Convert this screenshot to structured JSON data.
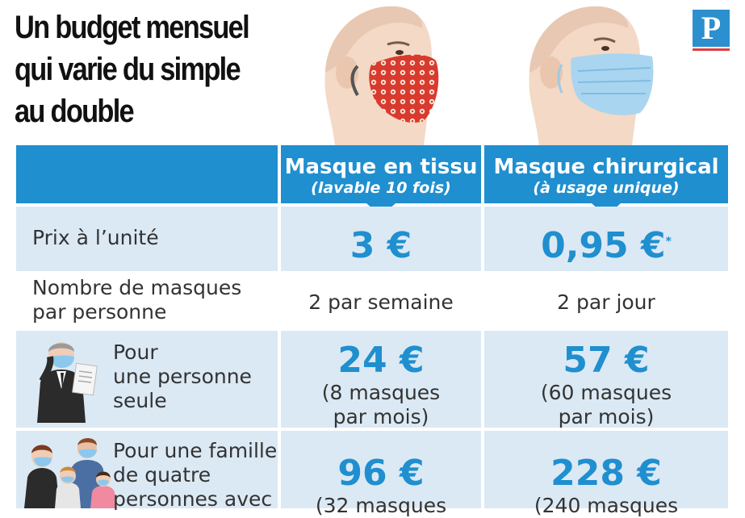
{
  "title_lines": [
    "Un budget mensuel",
    "qui varie du simple",
    "au double"
  ],
  "logo": {
    "letter": "P",
    "icon": "le-parisien-logo-icon"
  },
  "columns": [
    {
      "title": "Masque en tissu",
      "subtitle": "(lavable 10 fois)"
    },
    {
      "title": "Masque chirurgical",
      "subtitle": "(à usage unique)"
    }
  ],
  "rows": {
    "prix": {
      "label": "Prix à l’unité",
      "tissu": "3 €",
      "chirurgical": "0,95 €",
      "chirurgical_note": "*"
    },
    "nombre": {
      "label_lines": [
        "Nombre de masques",
        "par personne"
      ],
      "tissu": "2 par semaine",
      "chirurgical": "2 par jour"
    },
    "seule": {
      "label_lines": [
        "Pour",
        "une personne",
        "seule"
      ],
      "icon": "businessman-with-mask-icon",
      "tissu_price": "24 €",
      "tissu_detail_lines": [
        "(8 masques",
        "par mois)"
      ],
      "chirurgical_price": "57 €",
      "chirurgical_detail_lines": [
        "(60 masques",
        "par mois)"
      ]
    },
    "famille": {
      "label_lines": [
        "Pour une famille",
        "de quatre",
        "personnes avec"
      ],
      "icon": "family-with-masks-icon",
      "tissu_price": "96 €",
      "tissu_detail_lines": [
        "(32 masques"
      ],
      "chirurgical_price": "228 €",
      "chirurgical_detail_lines": [
        "(240 masques"
      ]
    }
  },
  "colors": {
    "accent": "#1f8fcf",
    "shade": "#dbe9f4",
    "text": "#333333"
  }
}
